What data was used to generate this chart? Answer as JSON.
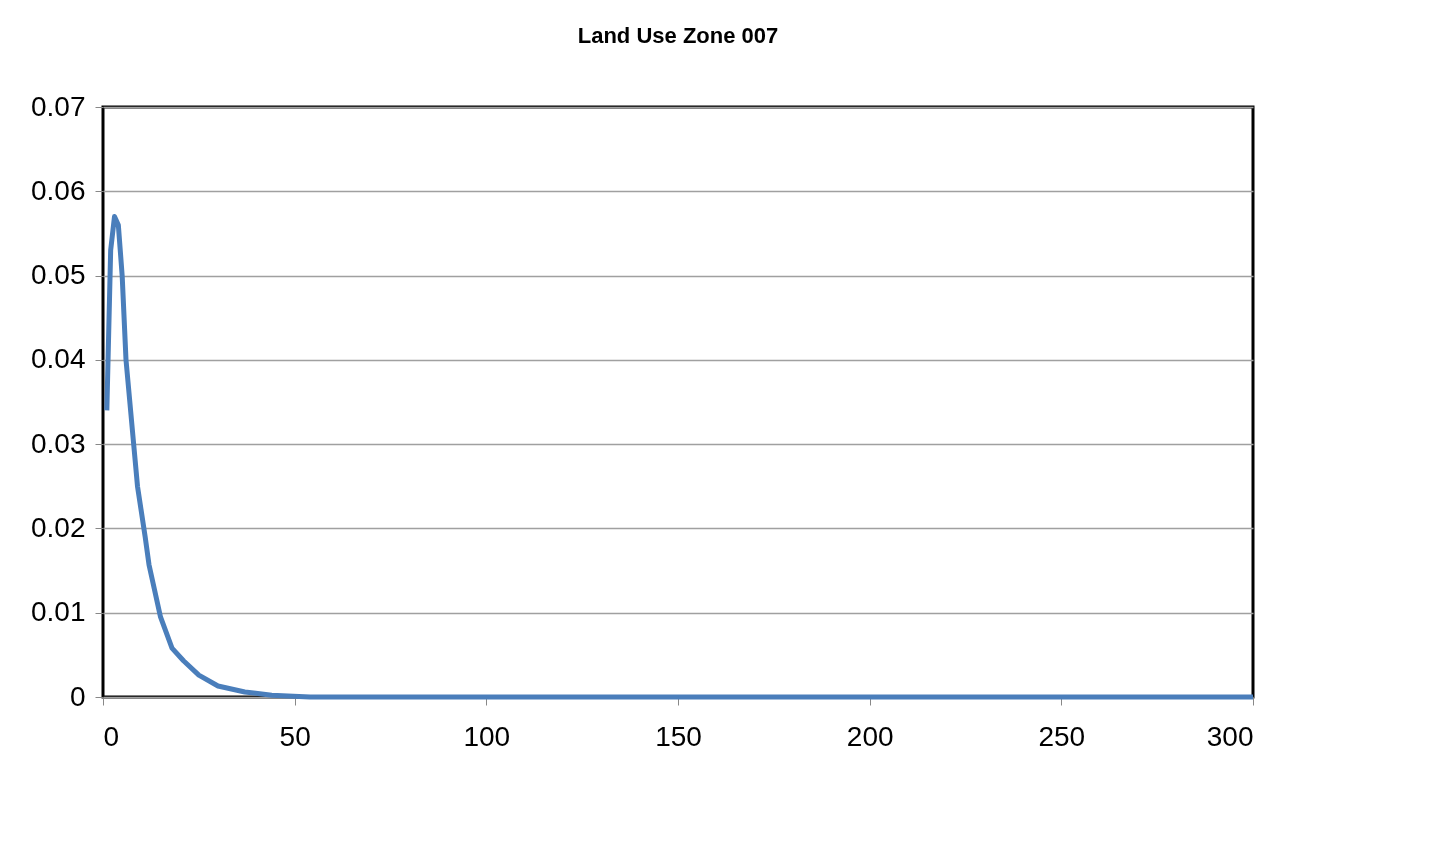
{
  "chart_data": {
    "type": "line",
    "title": "Land Use Zone 007",
    "x": [
      1,
      2,
      3,
      4,
      5,
      6,
      8,
      9,
      11,
      12,
      15,
      18,
      21,
      25,
      30,
      37,
      44,
      54,
      100,
      200,
      300
    ],
    "series": [
      {
        "color": "#4a7ebb",
        "values": [
          0.034,
          0.053,
          0.057,
          0.056,
          0.05,
          0.04,
          0.03,
          0.025,
          0.019,
          0.0157,
          0.0095,
          0.0058,
          0.0043,
          0.0026,
          0.0013,
          0.0006,
          0.0002,
          0,
          0,
          0,
          0
        ]
      }
    ],
    "xlim": [
      0,
      300
    ],
    "xticks": [
      0,
      50,
      100,
      150,
      200,
      250,
      300
    ],
    "ylim": [
      0,
      0.07
    ],
    "yticks": [
      {
        "value": 0,
        "label": "0"
      },
      0.01,
      0.02,
      0.03,
      0.04,
      0.05,
      0.06,
      0.07
    ],
    "grid": "y",
    "marker": "none",
    "line_style": "solid"
  }
}
